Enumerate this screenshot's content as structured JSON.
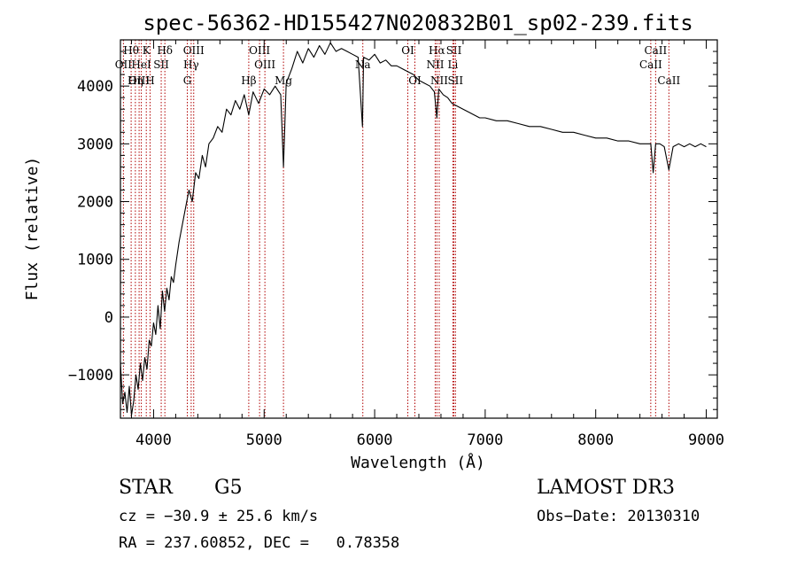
{
  "chart_data": {
    "type": "line",
    "title": "spec-56362-HD155427N020832B01_sp02-239.fits",
    "xlabel": "Wavelength (Å)",
    "ylabel": "Flux (relative)",
    "xlim": [
      3700,
      9100
    ],
    "ylim": [
      -1750,
      4800
    ],
    "x_ticks": [
      4000,
      5000,
      6000,
      7000,
      8000,
      9000
    ],
    "y_ticks": [
      -1000,
      0,
      1000,
      2000,
      3000,
      4000
    ],
    "grid": false,
    "series": [
      {
        "x": [
          3700,
          3720,
          3740,
          3760,
          3780,
          3800,
          3820,
          3840,
          3860,
          3880,
          3900,
          3920,
          3940,
          3960,
          3980,
          4000,
          4020,
          4040,
          4060,
          4080,
          4100,
          4120,
          4140,
          4160,
          4180,
          4200,
          4230,
          4260,
          4290,
          4320,
          4350,
          4380,
          4410,
          4440,
          4470,
          4500,
          4540,
          4580,
          4620,
          4660,
          4700,
          4740,
          4780,
          4820,
          4861,
          4900,
          4950,
          5000,
          5050,
          5100,
          5150,
          5175,
          5200,
          5250,
          5300,
          5350,
          5400,
          5450,
          5500,
          5550,
          5600,
          5650,
          5700,
          5750,
          5800,
          5850,
          5890,
          5900,
          5950,
          6000,
          6050,
          6100,
          6150,
          6200,
          6250,
          6300,
          6350,
          6400,
          6450,
          6500,
          6540,
          6563,
          6580,
          6620,
          6660,
          6700,
          6750,
          6800,
          6850,
          6900,
          6950,
          7000,
          7100,
          7200,
          7300,
          7400,
          7500,
          7600,
          7700,
          7800,
          7900,
          8000,
          8100,
          8200,
          8300,
          8400,
          8498,
          8520,
          8542,
          8580,
          8620,
          8662,
          8700,
          8750,
          8800,
          8850,
          8900,
          8950,
          9000
        ],
        "y": [
          -800,
          -1500,
          -1300,
          -1650,
          -1200,
          -1700,
          -1450,
          -1000,
          -1250,
          -800,
          -1100,
          -700,
          -900,
          -400,
          -500,
          -100,
          -300,
          200,
          -200,
          450,
          100,
          500,
          300,
          700,
          600,
          900,
          1300,
          1600,
          1900,
          2200,
          2000,
          2500,
          2400,
          2800,
          2600,
          3000,
          3100,
          3300,
          3200,
          3600,
          3500,
          3750,
          3600,
          3850,
          3500,
          3900,
          3700,
          3950,
          3850,
          4000,
          3850,
          2600,
          4050,
          4300,
          4600,
          4400,
          4650,
          4500,
          4700,
          4550,
          4750,
          4600,
          4650,
          4600,
          4550,
          4500,
          3300,
          4500,
          4450,
          4550,
          4400,
          4450,
          4350,
          4350,
          4300,
          4250,
          4200,
          4100,
          4050,
          4000,
          3900,
          3450,
          3950,
          3850,
          3800,
          3700,
          3650,
          3600,
          3550,
          3500,
          3450,
          3450,
          3400,
          3400,
          3350,
          3300,
          3300,
          3250,
          3200,
          3200,
          3150,
          3100,
          3100,
          3050,
          3050,
          3000,
          3000,
          2500,
          3000,
          3000,
          2950,
          2550,
          2950,
          3000,
          2950,
          3000,
          2950,
          3000,
          2950
        ]
      }
    ],
    "line_markers": [
      {
        "label": "Hθ",
        "x": 3797,
        "row": 1
      },
      {
        "label": "OII",
        "x": 3727,
        "row": 2
      },
      {
        "label": "OIII",
        "x": 3869,
        "row": 3
      },
      {
        "label": "HeI",
        "x": 3889,
        "row": 2
      },
      {
        "label": "K",
        "x": 3934,
        "row": 1
      },
      {
        "label": "Hη",
        "x": 3835,
        "row": 3
      },
      {
        "label": "SII",
        "x": 4069,
        "row": 2
      },
      {
        "label": "H",
        "x": 3968,
        "row": 3
      },
      {
        "label": "Hδ",
        "x": 4102,
        "row": 1
      },
      {
        "label": "OIII",
        "x": 4363,
        "row": 1
      },
      {
        "label": "Hγ",
        "x": 4340,
        "row": 2
      },
      {
        "label": "G",
        "x": 4305,
        "row": 3
      },
      {
        "label": "Hβ",
        "x": 4861,
        "row": 3
      },
      {
        "label": "OIII",
        "x": 4959,
        "row": 1
      },
      {
        "label": "OIII",
        "x": 5007,
        "row": 2
      },
      {
        "label": "Mg",
        "x": 5175,
        "row": 3
      },
      {
        "label": "Na",
        "x": 5893,
        "row": 2
      },
      {
        "label": "OI",
        "x": 6300,
        "row": 1
      },
      {
        "label": "OI",
        "x": 6364,
        "row": 3
      },
      {
        "label": "Hα",
        "x": 6563,
        "row": 1
      },
      {
        "label": "NII",
        "x": 6548,
        "row": 2
      },
      {
        "label": "NII",
        "x": 6584,
        "row": 3
      },
      {
        "label": "SII",
        "x": 6717,
        "row": 1
      },
      {
        "label": "Li",
        "x": 6708,
        "row": 2
      },
      {
        "label": "SII",
        "x": 6731,
        "row": 3
      },
      {
        "label": "CaII",
        "x": 8542,
        "row": 1
      },
      {
        "label": "CaII",
        "x": 8498,
        "row": 2
      },
      {
        "label": "CaII",
        "x": 8662,
        "row": 3
      }
    ]
  },
  "info": {
    "object_type": "STAR",
    "subclass": "G5",
    "survey": "LAMOST DR3",
    "redshift_line": "cz = −30.9 ± 25.6 km/s",
    "obs_date": "Obs−Date: 20130310",
    "coords": "RA = 237.60852, DEC =   0.78358"
  }
}
